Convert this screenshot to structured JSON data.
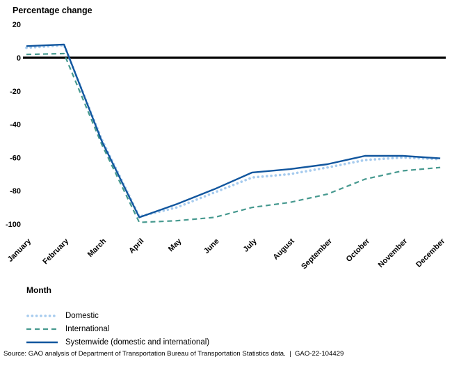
{
  "title": "Percentage change",
  "axes": {
    "y_ticks": [
      20,
      0,
      -20,
      -40,
      -60,
      -80,
      -100
    ],
    "x_label": "Month"
  },
  "chart_data": {
    "type": "line",
    "title": "Percentage change",
    "xlabel": "Month",
    "ylabel": "Percentage change",
    "ylim": [
      -100,
      20
    ],
    "baseline": 0,
    "grid": false,
    "legend_position": "bottom-left",
    "categories": [
      "January",
      "February",
      "March",
      "April",
      "May",
      "June",
      "July",
      "August",
      "September",
      "October",
      "November",
      "December"
    ],
    "series": [
      {
        "name": "Domestic",
        "style": "dotted",
        "color": "#a6cbee",
        "values": [
          6,
          7.5,
          -49,
          -95.5,
          -90,
          -81,
          -72,
          -70,
          -66,
          -61.5,
          -60,
          -61
        ]
      },
      {
        "name": "International",
        "style": "dashed",
        "color": "#46998f",
        "values": [
          2,
          2.5,
          -52,
          -99,
          -98,
          -96,
          -90,
          -87,
          -82,
          -73,
          -68,
          -66
        ]
      },
      {
        "name": "Systemwide (domestic and international)",
        "style": "solid",
        "color": "#11569e",
        "values": [
          7,
          8,
          -50,
          -96,
          -88,
          -79,
          -69,
          -67,
          -64,
          -59,
          -59,
          -60.5
        ]
      }
    ]
  },
  "colors": {
    "baseline": "#000000",
    "text": "#000000"
  },
  "source": "Source: GAO analysis of Department of Transportation Bureau of Transportation Statistics data.  |  GAO-22-104429"
}
